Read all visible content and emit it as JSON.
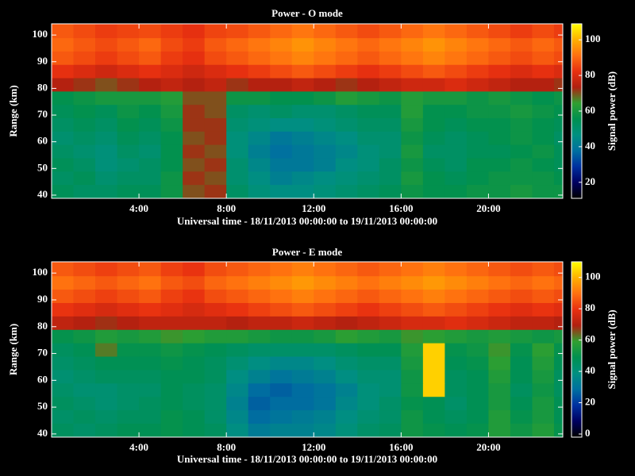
{
  "chart_data": [
    {
      "type": "heatmap",
      "title": "Power - O mode",
      "x_label": "Universal time - 18/11/2013 00:00:00 to 19/11/2013 00:00:00",
      "y_label": "Range (km)",
      "colorbar_label": "Signal power (dB)",
      "x": [
        0,
        1,
        2,
        3,
        4,
        5,
        6,
        7,
        8,
        9,
        10,
        11,
        12,
        13,
        14,
        15,
        16,
        17,
        18,
        19,
        20,
        21,
        22,
        23
      ],
      "y": [
        39,
        44,
        49,
        54,
        59,
        64,
        69,
        74,
        79,
        84,
        89,
        94,
        99
      ],
      "z": [
        [
          54,
          52,
          52,
          54,
          54,
          58,
          70,
          72,
          52,
          48,
          46,
          46,
          48,
          50,
          52,
          54,
          58,
          56,
          56,
          58,
          58,
          60,
          58,
          58
        ],
        [
          52,
          54,
          50,
          52,
          52,
          58,
          72,
          70,
          50,
          46,
          42,
          44,
          46,
          48,
          50,
          52,
          60,
          56,
          54,
          56,
          58,
          58,
          58,
          56
        ],
        [
          54,
          52,
          48,
          50,
          52,
          56,
          70,
          72,
          50,
          44,
          40,
          40,
          42,
          46,
          48,
          52,
          58,
          54,
          52,
          56,
          56,
          58,
          56,
          54
        ],
        [
          52,
          50,
          48,
          52,
          50,
          56,
          72,
          70,
          48,
          42,
          38,
          40,
          42,
          44,
          48,
          50,
          60,
          52,
          52,
          54,
          54,
          56,
          58,
          54
        ],
        [
          50,
          52,
          50,
          54,
          52,
          56,
          70,
          72,
          48,
          44,
          40,
          42,
          44,
          46,
          50,
          50,
          58,
          54,
          52,
          54,
          56,
          58,
          56,
          52
        ],
        [
          52,
          54,
          52,
          56,
          54,
          58,
          72,
          72,
          50,
          48,
          46,
          46,
          48,
          50,
          52,
          52,
          60,
          56,
          54,
          56,
          56,
          58,
          56,
          54
        ],
        [
          54,
          56,
          54,
          58,
          56,
          60,
          72,
          70,
          52,
          50,
          52,
          50,
          50,
          52,
          54,
          54,
          62,
          56,
          56,
          58,
          58,
          60,
          58,
          56
        ],
        [
          56,
          58,
          60,
          60,
          60,
          62,
          70,
          70,
          58,
          58,
          56,
          56,
          58,
          62,
          60,
          58,
          62,
          60,
          60,
          58,
          60,
          58,
          56,
          58
        ],
        [
          74,
          72,
          70,
          72,
          74,
          76,
          74,
          76,
          72,
          74,
          74,
          76,
          74,
          72,
          74,
          76,
          78,
          78,
          80,
          78,
          76,
          74,
          74,
          72
        ],
        [
          82,
          80,
          78,
          80,
          82,
          80,
          78,
          80,
          82,
          84,
          86,
          88,
          86,
          84,
          82,
          84,
          86,
          88,
          86,
          84,
          82,
          80,
          82,
          80
        ],
        [
          88,
          86,
          84,
          86,
          88,
          84,
          82,
          86,
          88,
          90,
          92,
          94,
          92,
          90,
          88,
          90,
          92,
          94,
          92,
          90,
          88,
          86,
          88,
          86
        ],
        [
          90,
          88,
          86,
          88,
          90,
          86,
          84,
          88,
          90,
          92,
          94,
          96,
          94,
          92,
          90,
          92,
          94,
          96,
          94,
          92,
          90,
          88,
          90,
          88
        ],
        [
          88,
          86,
          84,
          85,
          86,
          84,
          82,
          85,
          86,
          88,
          90,
          92,
          90,
          88,
          86,
          88,
          90,
          92,
          90,
          88,
          86,
          84,
          86,
          84
        ]
      ],
      "xlim": [
        0,
        23.4
      ],
      "ylim": [
        38.8,
        104.2
      ],
      "xticks": [
        {
          "value": 4,
          "label": "4:00"
        },
        {
          "value": 8,
          "label": "8:00"
        },
        {
          "value": 12,
          "label": "12:00"
        },
        {
          "value": 16,
          "label": "16:00"
        },
        {
          "value": 20,
          "label": "20:00"
        }
      ],
      "yticks": [
        40,
        50,
        60,
        70,
        80,
        90,
        100
      ],
      "zlim": [
        11,
        109
      ],
      "zticks": [
        20,
        40,
        60,
        80,
        100
      ],
      "colormap": [
        "#000000",
        "#000060",
        "#0030a0",
        "#0070a0",
        "#009080",
        "#009050",
        "#30a030",
        "#b02010",
        "#e83010",
        "#ff7010",
        "#ffb000",
        "#ffff00"
      ]
    },
    {
      "type": "heatmap",
      "title": "Power - E mode",
      "x_label": "Universal time - 18/11/2013 00:00:00 to 19/11/2013 00:00:00",
      "y_label": "Range (km)",
      "colorbar_label": "Signal power (dB)",
      "x": [
        0,
        1,
        2,
        3,
        4,
        5,
        6,
        7,
        8,
        9,
        10,
        11,
        12,
        13,
        14,
        15,
        16,
        17,
        18,
        19,
        20,
        21,
        22,
        23
      ],
      "y": [
        39,
        44,
        49,
        54,
        59,
        64,
        69,
        74,
        79,
        84,
        89,
        94,
        99
      ],
      "z": [
        [
          46,
          44,
          46,
          48,
          48,
          50,
          48,
          46,
          38,
          32,
          34,
          34,
          36,
          40,
          44,
          46,
          52,
          50,
          48,
          50,
          56,
          52,
          56,
          50
        ],
        [
          44,
          46,
          44,
          46,
          46,
          50,
          48,
          44,
          36,
          28,
          30,
          32,
          34,
          38,
          42,
          44,
          52,
          48,
          46,
          48,
          56,
          50,
          54,
          48
        ],
        [
          46,
          44,
          42,
          44,
          46,
          48,
          46,
          44,
          34,
          26,
          28,
          28,
          30,
          36,
          40,
          44,
          50,
          48,
          44,
          48,
          54,
          48,
          54,
          48
        ],
        [
          44,
          42,
          42,
          44,
          44,
          48,
          46,
          44,
          36,
          28,
          26,
          28,
          30,
          34,
          40,
          42,
          52,
          104,
          46,
          48,
          54,
          46,
          52,
          46
        ],
        [
          42,
          44,
          46,
          46,
          46,
          48,
          48,
          46,
          38,
          34,
          30,
          32,
          34,
          38,
          42,
          42,
          52,
          104,
          46,
          48,
          56,
          48,
          54,
          46
        ],
        [
          44,
          46,
          48,
          48,
          48,
          50,
          48,
          46,
          42,
          38,
          36,
          36,
          38,
          42,
          44,
          44,
          54,
          104,
          48,
          50,
          58,
          48,
          56,
          48
        ],
        [
          46,
          48,
          62,
          50,
          50,
          52,
          50,
          48,
          46,
          44,
          44,
          44,
          44,
          46,
          48,
          48,
          56,
          104,
          50,
          52,
          60,
          50,
          58,
          50
        ],
        [
          50,
          52,
          56,
          54,
          56,
          60,
          58,
          56,
          56,
          54,
          52,
          52,
          54,
          58,
          56,
          54,
          60,
          58,
          56,
          54,
          56,
          54,
          52,
          54
        ],
        [
          72,
          70,
          68,
          70,
          72,
          72,
          72,
          72,
          70,
          72,
          72,
          74,
          72,
          70,
          72,
          74,
          76,
          76,
          78,
          76,
          74,
          72,
          72,
          70
        ],
        [
          80,
          78,
          76,
          78,
          80,
          78,
          76,
          78,
          80,
          82,
          84,
          86,
          84,
          82,
          80,
          82,
          84,
          86,
          84,
          82,
          80,
          78,
          80,
          78
        ],
        [
          86,
          84,
          82,
          84,
          86,
          82,
          80,
          84,
          86,
          88,
          90,
          92,
          90,
          88,
          86,
          88,
          90,
          92,
          90,
          88,
          86,
          84,
          86,
          84
        ],
        [
          90,
          88,
          86,
          88,
          90,
          86,
          84,
          88,
          90,
          92,
          94,
          96,
          94,
          92,
          90,
          92,
          94,
          96,
          94,
          92,
          90,
          88,
          90,
          88
        ],
        [
          86,
          84,
          82,
          84,
          86,
          82,
          80,
          84,
          86,
          88,
          90,
          92,
          90,
          88,
          86,
          88,
          90,
          92,
          90,
          88,
          86,
          84,
          86,
          84
        ]
      ],
      "xlim": [
        0,
        23.4
      ],
      "ylim": [
        38.8,
        104.2
      ],
      "xticks": [
        {
          "value": 4,
          "label": "4:00"
        },
        {
          "value": 8,
          "label": "8:00"
        },
        {
          "value": 12,
          "label": "12:00"
        },
        {
          "value": 16,
          "label": "16:00"
        },
        {
          "value": 20,
          "label": "20:00"
        }
      ],
      "yticks": [
        40,
        50,
        60,
        70,
        80,
        90,
        100
      ],
      "zlim": [
        -2,
        110
      ],
      "zticks": [
        0,
        20,
        40,
        60,
        80,
        100
      ],
      "colormap": [
        "#000000",
        "#000060",
        "#0030a0",
        "#0070a0",
        "#009080",
        "#009050",
        "#30a030",
        "#b02010",
        "#e83010",
        "#ff7010",
        "#ffb000",
        "#ffff00"
      ]
    }
  ]
}
